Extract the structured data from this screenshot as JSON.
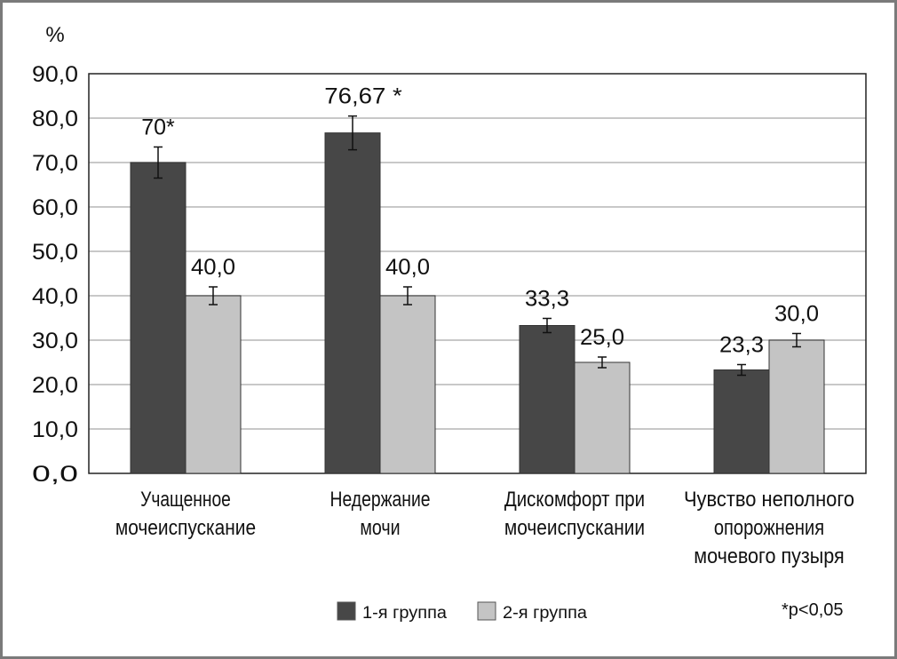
{
  "chart_data": {
    "type": "bar",
    "title": "",
    "ylabel": "%",
    "xlabel": "",
    "ylim": [
      0,
      90
    ],
    "yticks": [
      "0,0",
      "10,0",
      "20,0",
      "30,0",
      "40,0",
      "50,0",
      "60,0",
      "70,0",
      "80,0",
      "90,0"
    ],
    "grid": true,
    "categories": [
      [
        "Учащенное",
        "мочеиспускание"
      ],
      [
        "Недержание",
        "мочи"
      ],
      [
        "Дискомфорт при",
        "мочеиспускании"
      ],
      [
        "Чувство неполного",
        "опорожнения",
        "мочевого пузыря"
      ]
    ],
    "series": [
      {
        "name": "1-я группа",
        "color": "#474747",
        "values": [
          70,
          76.67,
          33.3,
          23.3
        ],
        "errors": [
          3.5,
          3.8,
          1.6,
          1.2
        ],
        "labels": [
          "70*",
          "76,67 *",
          "33,3",
          "23,3"
        ]
      },
      {
        "name": "2-я группа",
        "color": "#c4c4c4",
        "values": [
          40,
          40,
          25,
          30
        ],
        "errors": [
          2,
          2,
          1.2,
          1.5
        ],
        "labels": [
          "40,0",
          "40,0",
          "25,0",
          "30,0"
        ]
      }
    ],
    "legend_position": "bottom",
    "annotation": "*p<0,05"
  }
}
